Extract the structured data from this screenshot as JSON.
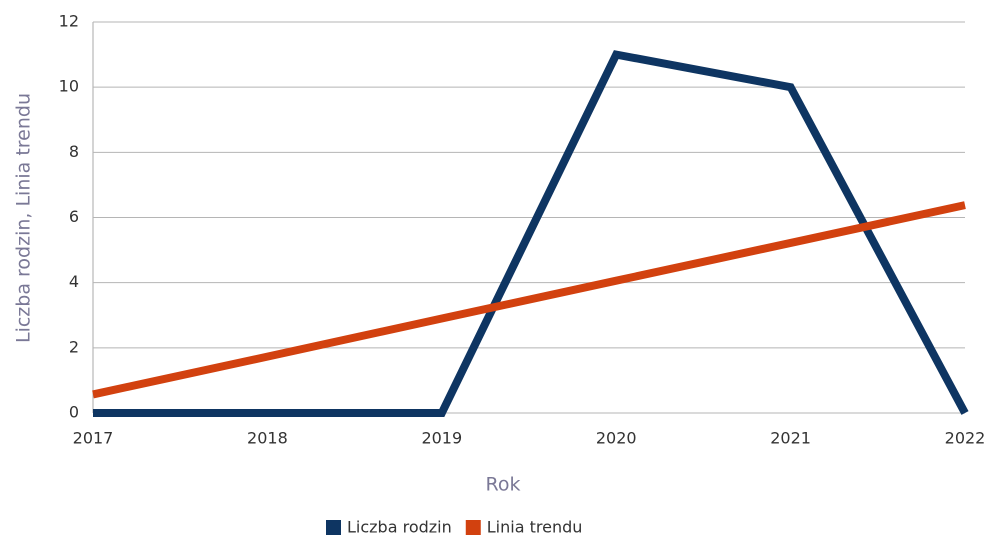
{
  "chart_data": {
    "type": "line",
    "x_label": "Rok",
    "y_label": "Liczba rodzin, Linia trendu",
    "x": [
      2017,
      2018,
      2019,
      2020,
      2021,
      2022
    ],
    "xlim": [
      2017,
      2022
    ],
    "xticks": [
      2017,
      2018,
      2019,
      2020,
      2021,
      2022
    ],
    "ylim": [
      0,
      12
    ],
    "yticks": [
      0,
      2,
      4,
      6,
      8,
      10,
      12
    ],
    "grid": true,
    "legend": "bottom",
    "series": [
      {
        "name": "Liczba rodzin",
        "color": "#0e3562",
        "values": [
          0,
          0,
          0,
          11,
          10,
          0
        ]
      },
      {
        "name": "Linia trendu",
        "color": "#d2410f",
        "values": [
          0.57,
          1.73,
          2.9,
          4.06,
          5.22,
          6.38
        ]
      }
    ]
  }
}
